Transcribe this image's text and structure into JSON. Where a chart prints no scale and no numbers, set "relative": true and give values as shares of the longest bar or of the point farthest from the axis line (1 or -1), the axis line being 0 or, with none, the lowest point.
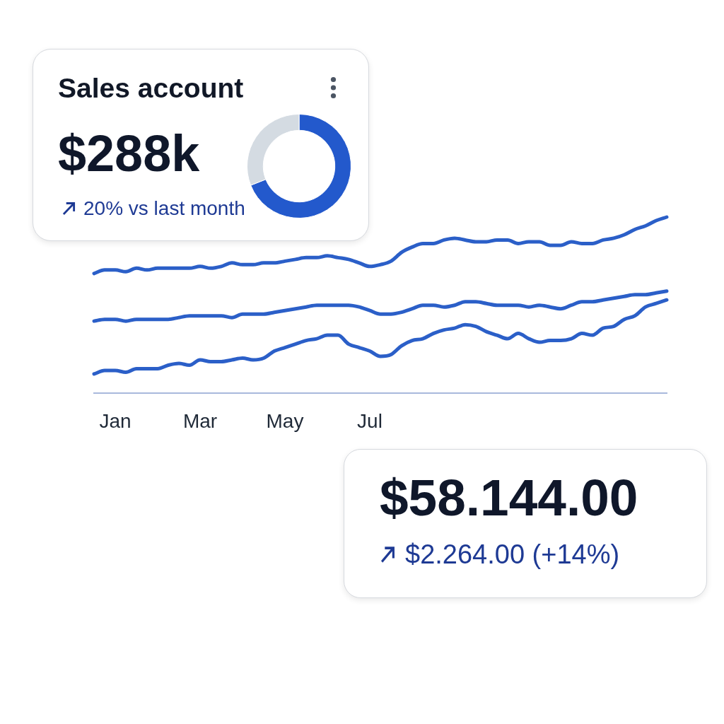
{
  "chart_data": [
    {
      "type": "donut",
      "title": "Sales account",
      "annotations": [
        "$288k",
        "20% vs last month"
      ],
      "categories": [
        null,
        null
      ],
      "values": [
        69,
        31
      ],
      "colors": [
        "#2359cc",
        "#d4dbe2"
      ]
    },
    {
      "type": "line",
      "relative": true,
      "categories": [
        null,
        null,
        "Jan",
        null,
        null,
        null,
        null,
        null,
        null,
        null,
        "Mar",
        null,
        null,
        null,
        null,
        null,
        null,
        null,
        "May",
        null,
        null,
        null,
        null,
        null,
        null,
        null,
        "Jul",
        null,
        null,
        null,
        null,
        null,
        null,
        null,
        null,
        null,
        null,
        null,
        null,
        null,
        null,
        null,
        null,
        null,
        null,
        null,
        null,
        null,
        null,
        null,
        null,
        null,
        null,
        null,
        null
      ],
      "series": [
        {
          "color": "#2b5fc8",
          "values": [
            0.68,
            0.7,
            0.7,
            0.69,
            0.71,
            0.7,
            0.71,
            0.71,
            0.71,
            0.71,
            0.72,
            0.71,
            0.72,
            0.74,
            0.73,
            0.73,
            0.74,
            0.74,
            0.75,
            0.76,
            0.77,
            0.77,
            0.78,
            0.77,
            0.76,
            0.74,
            0.72,
            0.73,
            0.75,
            0.8,
            0.83,
            0.85,
            0.85,
            0.87,
            0.88,
            0.87,
            0.86,
            0.86,
            0.87,
            0.87,
            0.85,
            0.86,
            0.86,
            0.84,
            0.84,
            0.86,
            0.85,
            0.85,
            0.87,
            0.88,
            0.9,
            0.93,
            0.95,
            0.98,
            1.0
          ]
        },
        {
          "color": "#2b5fc8",
          "values": [
            0.41,
            0.42,
            0.42,
            0.41,
            0.42,
            0.42,
            0.42,
            0.42,
            0.43,
            0.44,
            0.44,
            0.44,
            0.44,
            0.43,
            0.45,
            0.45,
            0.45,
            0.46,
            0.47,
            0.48,
            0.49,
            0.5,
            0.5,
            0.5,
            0.5,
            0.49,
            0.47,
            0.45,
            0.45,
            0.46,
            0.48,
            0.5,
            0.5,
            0.49,
            0.5,
            0.52,
            0.52,
            0.51,
            0.5,
            0.5,
            0.5,
            0.49,
            0.5,
            0.49,
            0.48,
            0.5,
            0.52,
            0.52,
            0.53,
            0.54,
            0.55,
            0.56,
            0.56,
            0.57,
            0.58
          ]
        },
        {
          "color": "#2b5fc8",
          "values": [
            0.11,
            0.13,
            0.13,
            0.12,
            0.14,
            0.14,
            0.14,
            0.16,
            0.17,
            0.16,
            0.19,
            0.18,
            0.18,
            0.19,
            0.2,
            0.19,
            0.2,
            0.24,
            0.26,
            0.28,
            0.3,
            0.31,
            0.33,
            0.33,
            0.28,
            0.26,
            0.24,
            0.21,
            0.22,
            0.27,
            0.3,
            0.31,
            0.34,
            0.36,
            0.37,
            0.39,
            0.38,
            0.35,
            0.33,
            0.31,
            0.34,
            0.31,
            0.29,
            0.3,
            0.3,
            0.31,
            0.34,
            0.33,
            0.37,
            0.38,
            0.42,
            0.44,
            0.49,
            0.51,
            0.53
          ]
        }
      ]
    },
    {
      "type": "other",
      "annotations": [
        "$58.144.00",
        "$2.264.00 (+14%)"
      ]
    }
  ]
}
